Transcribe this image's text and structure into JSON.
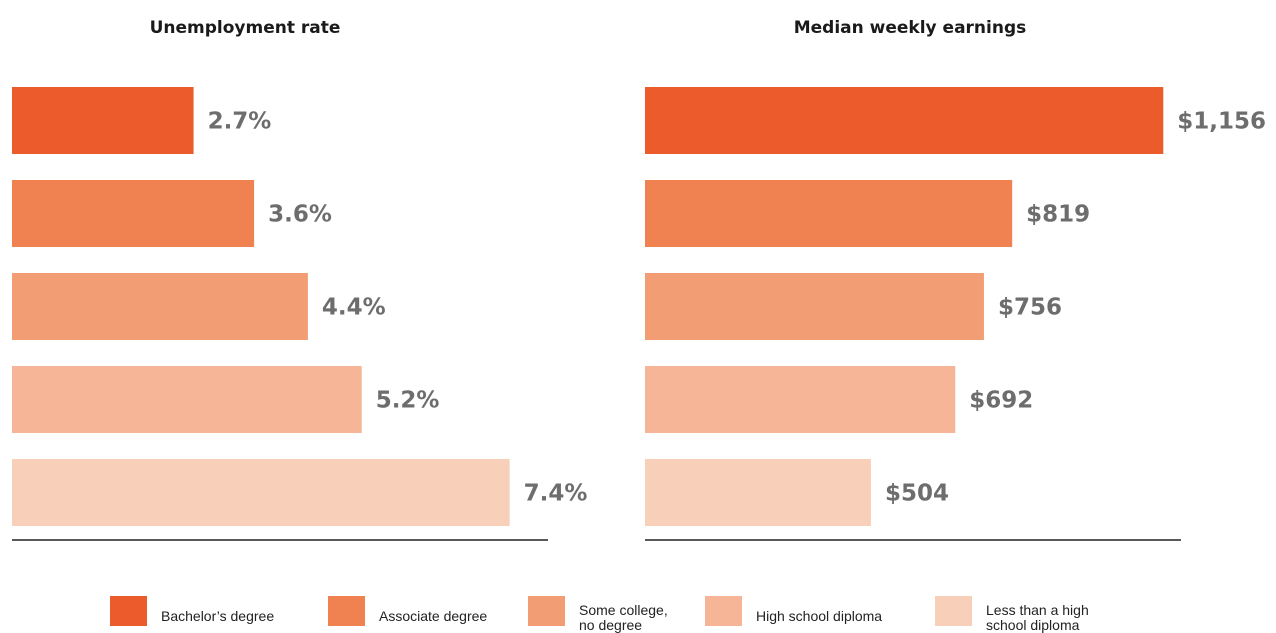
{
  "chart_data": [
    {
      "type": "bar",
      "orientation": "horizontal",
      "title": "Unemployment rate",
      "categories": [
        "Bachelor’s degree",
        "Associate degree",
        "Some college,\nno degree",
        "High school diploma",
        "Less than a high\nschool diploma"
      ],
      "values": [
        2.7,
        3.6,
        4.4,
        5.2,
        7.4
      ],
      "value_labels": [
        "2.7%",
        "3.6%",
        "4.4%",
        "5.2%",
        "7.4%"
      ],
      "xlim": [
        0,
        8.0
      ],
      "grid": false
    },
    {
      "type": "bar",
      "orientation": "horizontal",
      "title": "Median weekly earnings",
      "categories": [
        "Bachelor’s degree",
        "Associate degree",
        "Some college,\nno degree",
        "High school diploma",
        "Less than a high\nschool diploma"
      ],
      "values": [
        1156,
        819,
        756,
        692,
        504
      ],
      "value_labels": [
        "$1,156",
        "$819",
        "$756",
        "$692",
        "$504"
      ],
      "xlim": [
        0,
        1200
      ],
      "grid": false
    }
  ],
  "legend": {
    "placement": "bottom",
    "items": [
      "Bachelor’s degree",
      "Associate degree",
      "Some college,\nno degree",
      "High school diploma",
      "Less than a high\nschool diploma"
    ]
  },
  "colors": [
    "#eb5b2b",
    "#f08150",
    "#f29d74",
    "#f5b596",
    "#f8d0b9"
  ]
}
